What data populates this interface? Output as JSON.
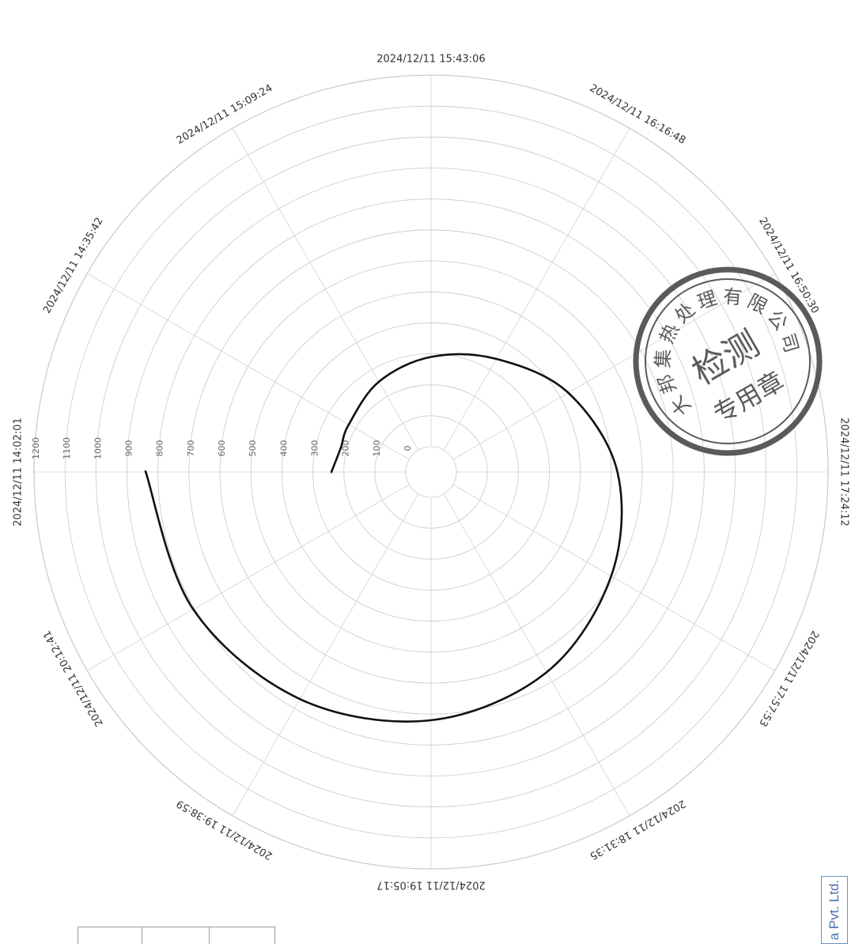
{
  "chart_data": {
    "type": "polar-line",
    "radial_ticks": [
      "0",
      "100",
      "200",
      "300",
      "400",
      "500",
      "600",
      "700",
      "800",
      "900",
      "1000",
      "1100",
      "1200"
    ],
    "r_max": 1200,
    "angular_ticks": [
      "2024/12/11 14:02:01",
      "2024/12/11 14:35:42",
      "2024/12/11 15:09:24",
      "2024/12/11 15:43:06",
      "2024/12/11 16:16:48",
      "2024/12/11 16:50:30",
      "2024/12/11 17:24:12",
      "2024/12/11 17:57:53",
      "2024/12/11 18:31:35",
      "2024/12/11 19:05:17",
      "2024/12/11 19:38:59",
      "2024/12/11 20:12:41"
    ],
    "direction": "clockwise",
    "start": "left",
    "grid": true,
    "series": [
      {
        "color": "#111111",
        "points": [
          [
            "2024/12/11 14:02:01",
            240
          ],
          [
            "2024/12/11 14:18:51",
            220
          ],
          [
            "2024/12/11 14:35:42",
            225
          ],
          [
            "2024/12/11 15:09:24",
            255
          ],
          [
            "2024/12/11 15:43:06",
            290
          ],
          [
            "2024/12/11 16:16:48",
            340
          ],
          [
            "2024/12/11 16:50:30",
            430
          ],
          [
            "2024/12/11 17:24:12",
            520
          ],
          [
            "2024/12/11 17:57:53",
            590
          ],
          [
            "2024/12/11 18:31:35",
            665
          ],
          [
            "2024/12/11 19:05:17",
            720
          ],
          [
            "2024/12/11 19:38:59",
            765
          ],
          [
            "2024/12/11 20:12:41",
            805
          ],
          [
            "2024/12/11 20:46:22",
            840
          ]
        ]
      }
    ]
  },
  "stamp": {
    "outer_text": "大邦集热处理有限公司",
    "center_text": "检测",
    "bottom_text": "专用章",
    "color": "#5a5a5a"
  },
  "corner_label": "a Pvt. Ltd."
}
